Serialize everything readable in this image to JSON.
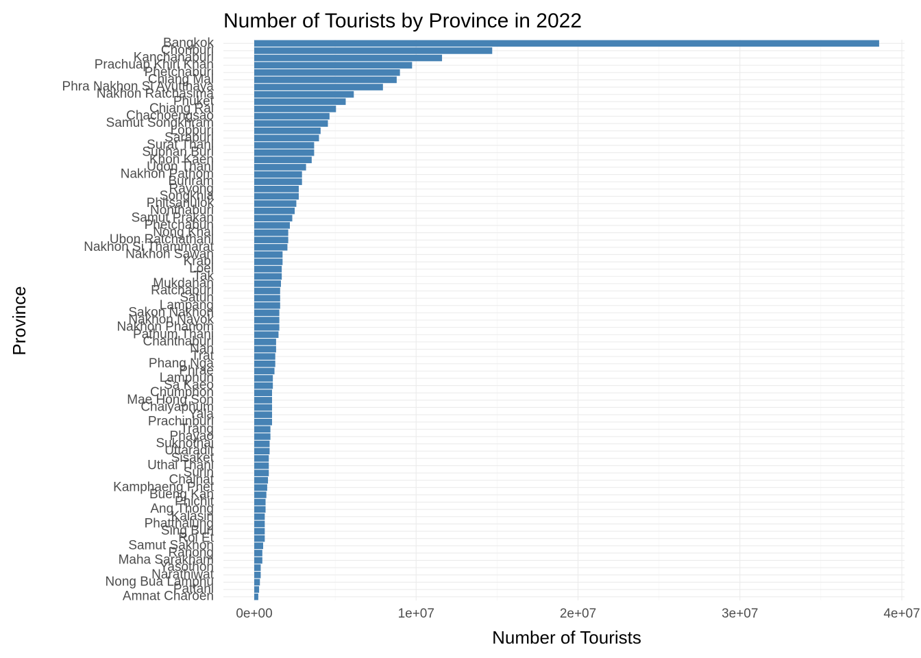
{
  "chart_data": {
    "type": "bar",
    "orientation": "horizontal",
    "title": "Number of Tourists by Province in 2022",
    "xlabel": "Number of Tourists",
    "ylabel": "Province",
    "xlim": [
      0,
      40000000
    ],
    "x_ticks": [
      0,
      10000000,
      20000000,
      30000000,
      40000000
    ],
    "x_tick_labels": [
      "0e+00",
      "1e+07",
      "2e+07",
      "3e+07",
      "4e+07"
    ],
    "bar_color": "#4682B4",
    "grid": true,
    "categories": [
      "Bangkok",
      "Chonburi",
      "Kanchanaburi",
      "Prachuap Khiri Khan",
      "Phetchaburi",
      "Chiang Mai",
      "Phra Nakhon Si Ayutthaya",
      "Nakhon Ratchasima",
      "Phuket",
      "Chiang Rai",
      "Chachoengsao",
      "Samut Songkhram",
      "Lopburi",
      "Saraburi",
      "Surat Thani",
      "Suphan Buri",
      "Khon Kaen",
      "Udon Thani",
      "Nakhon Pathom",
      "Buriram",
      "Rayong",
      "Songkhla",
      "Phitsanulok",
      "Nonthaburi",
      "Samut Prakan",
      "Phetchabun",
      "Nong Khai",
      "Ubon Ratchathani",
      "Nakhon Si Thammarat",
      "Nakhon Sawan",
      "Krabi",
      "Loei",
      "Tak",
      "Mukdahan",
      "Ratchaburi",
      "Satun",
      "Lampang",
      "Sakon Nakhon",
      "Nakhon Nayok",
      "Nakhon Phanom",
      "Pathum Thani",
      "Chanthaburi",
      "Nan",
      "Trat",
      "Phang Nga",
      "Phrae",
      "Lamphun",
      "Sa Kaeo",
      "Chumphon",
      "Mae Hong Son",
      "Chaiyaphum",
      "Yala",
      "Prachinburi",
      "Trang",
      "Phayao",
      "Sukhothai",
      "Uttaradit",
      "Sisaket",
      "Uthai Thani",
      "Surin",
      "Chainat",
      "Kamphaeng Phet",
      "Bueng Kan",
      "Phichit",
      "Ang Thong",
      "Kalasin",
      "Phatthalung",
      "Sing Buri",
      "Roi Et",
      "Samut Sakhon",
      "Ranong",
      "Maha Sarakham",
      "Yasothon",
      "Narathiwat",
      "Nong Bua Lamphu",
      "Pattani",
      "Amnat Charoen"
    ],
    "values": [
      38600000,
      14700000,
      11600000,
      9750000,
      9000000,
      8800000,
      7950000,
      6150000,
      5650000,
      5050000,
      4650000,
      4550000,
      4100000,
      4000000,
      3700000,
      3700000,
      3550000,
      3200000,
      2950000,
      2950000,
      2750000,
      2750000,
      2600000,
      2500000,
      2350000,
      2200000,
      2100000,
      2100000,
      2050000,
      1750000,
      1750000,
      1700000,
      1700000,
      1650000,
      1600000,
      1600000,
      1600000,
      1550000,
      1550000,
      1550000,
      1500000,
      1350000,
      1350000,
      1300000,
      1300000,
      1250000,
      1150000,
      1150000,
      1100000,
      1100000,
      1100000,
      1100000,
      1100000,
      1000000,
      1000000,
      950000,
      950000,
      900000,
      900000,
      900000,
      850000,
      800000,
      750000,
      700000,
      700000,
      650000,
      650000,
      650000,
      650000,
      550000,
      500000,
      500000,
      400000,
      400000,
      350000,
      300000,
      250000
    ]
  }
}
